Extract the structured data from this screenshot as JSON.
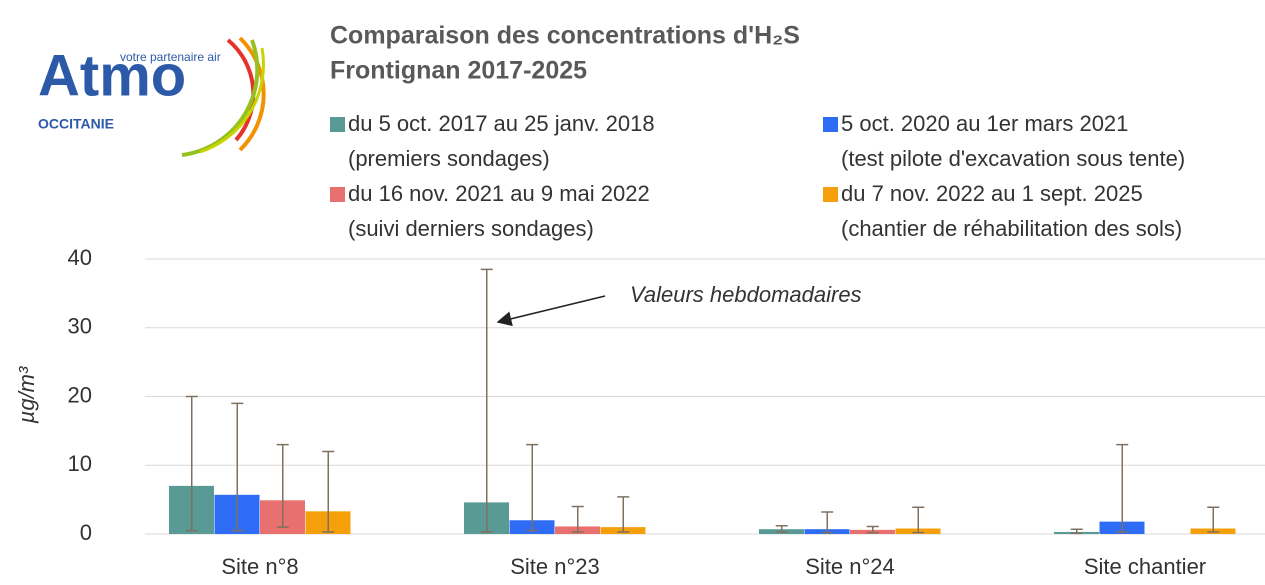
{
  "logo": {
    "brand": "Atmo",
    "tagline": "votre partenaire air",
    "region": "OCCITANIE"
  },
  "chart_data": {
    "type": "bar",
    "title": [
      "Comparaison des concentrations d'H₂S",
      "Frontignan 2017-2025"
    ],
    "ylabel": "µg/m³",
    "annotation": "Valeurs hebdomadaires",
    "categories": [
      "Site n°8",
      "Site n°23",
      "Site n°24",
      "Site chantier"
    ],
    "series": [
      {
        "name": [
          "du 5 oct. 2017 au 25 janv. 2018",
          "(premiers sondages)"
        ],
        "color": "#5a9a95",
        "values": [
          7.0,
          4.6,
          0.7,
          0.3
        ],
        "max": [
          20,
          38.5,
          1.2,
          0.7
        ],
        "min": [
          0.5,
          0.3,
          0.3,
          0.1
        ]
      },
      {
        "name": [
          "5 oct. 2020 au 1er mars 2021",
          "(test pilote d'excavation sous tente)"
        ],
        "color": "#2f6cf5",
        "values": [
          5.7,
          2.0,
          0.7,
          1.8
        ],
        "max": [
          19,
          13,
          3.2,
          13
        ],
        "min": [
          0.5,
          0.5,
          0.2,
          0.3
        ]
      },
      {
        "name": [
          "du 16 nov. 2021 au 9 mai 2022",
          "(suivi derniers sondages)"
        ],
        "color": "#e8716f",
        "values": [
          4.9,
          1.1,
          0.6,
          null
        ],
        "max": [
          13,
          4,
          1.1,
          null
        ],
        "min": [
          1,
          0.3,
          0.2,
          null
        ]
      },
      {
        "name": [
          "du 7 nov. 2022 au 1 sept. 2025",
          "(chantier de réhabilitation des sols)"
        ],
        "color": "#f5a00a",
        "values": [
          3.3,
          1.0,
          0.8,
          0.8
        ],
        "max": [
          12,
          5.4,
          3.9,
          3.9
        ],
        "min": [
          0.3,
          0.3,
          0.2,
          0.3
        ]
      }
    ],
    "ylim": [
      0,
      40
    ],
    "yticks": [
      0,
      10,
      20,
      30,
      40
    ],
    "grid": true
  }
}
